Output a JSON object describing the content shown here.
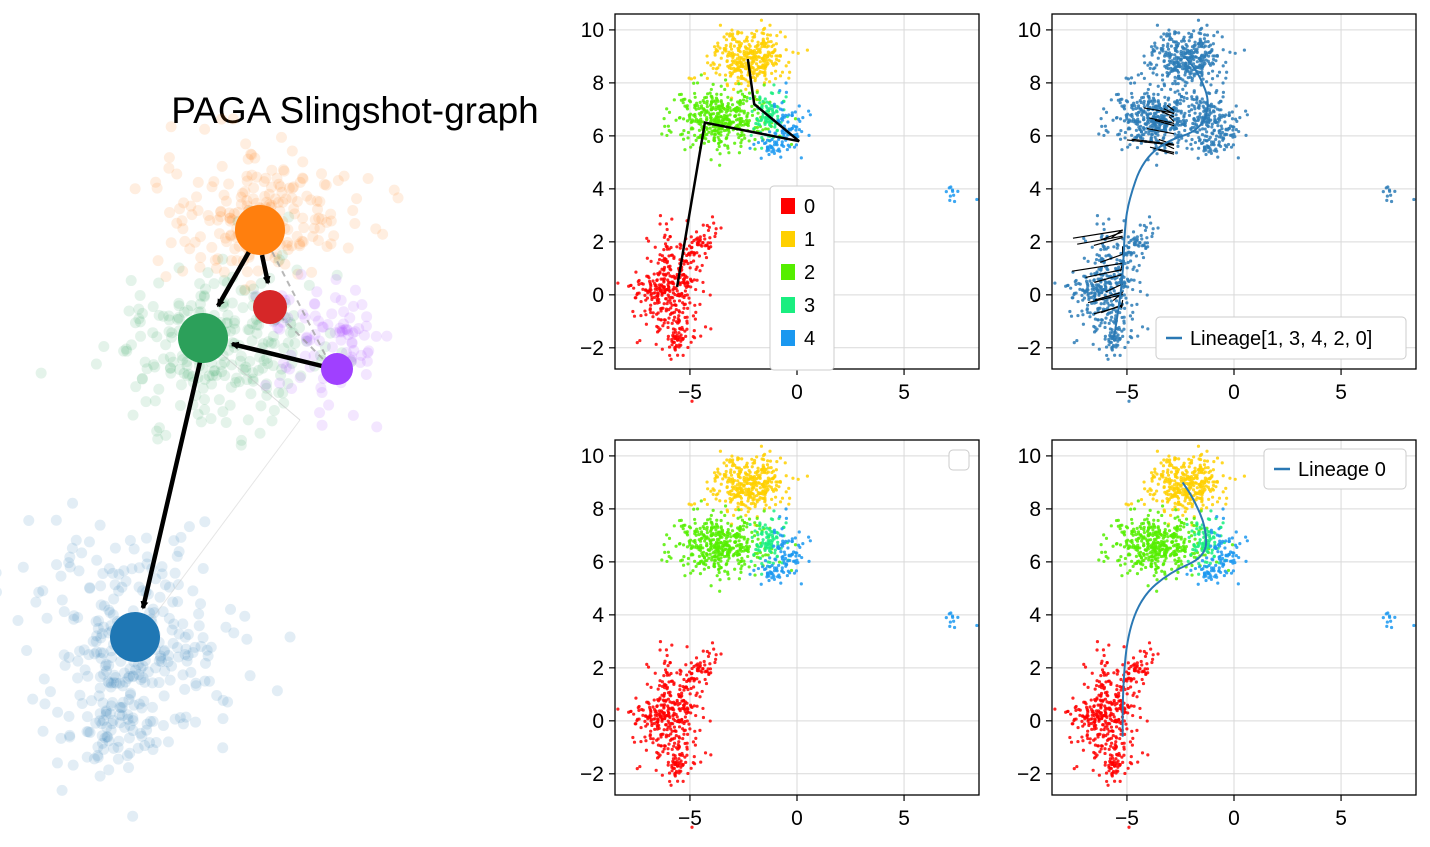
{
  "title": "PAGA Slingshot-graph",
  "colors": {
    "cluster": [
      "#ff0000",
      "#ffd000",
      "#55ee00",
      "#1aee80",
      "#1a98f0"
    ],
    "paga_orange": "#ff7f0e",
    "paga_red": "#d62728",
    "paga_green": "#2ca05a",
    "paga_purple": "#a040ff",
    "paga_blue": "#1f77b4",
    "curve": "#2a78b4",
    "point_blue": "#2c7bb6"
  },
  "chart_data": [
    {
      "type": "scatter",
      "xlim": [
        -8.5,
        8.5
      ],
      "ylim": [
        -2.8,
        10.6
      ],
      "xticks": [
        -5,
        0,
        5
      ],
      "yticks": [
        -2,
        0,
        2,
        4,
        6,
        8,
        10
      ],
      "grid": true,
      "color_mode": "cluster",
      "legend": {
        "placement": "center-right",
        "entries": [
          "0",
          "1",
          "2",
          "3",
          "4"
        ]
      },
      "mst_path": [
        [
          -5.6,
          0.3
        ],
        [
          -4.3,
          6.5
        ],
        [
          0.1,
          5.8
        ],
        [
          -2.0,
          7.2
        ],
        [
          -2.3,
          8.9
        ]
      ]
    },
    {
      "type": "scatter",
      "xlim": [
        -8.5,
        8.5
      ],
      "ylim": [
        -2.8,
        10.6
      ],
      "xticks": [
        -5,
        0,
        5
      ],
      "yticks": [
        -2,
        0,
        2,
        4,
        6,
        8,
        10
      ],
      "grid": true,
      "color_mode": "single",
      "legend": {
        "placement": "lower-right",
        "entries": [
          "Lineage[1, 3, 4, 2, 0]"
        ]
      },
      "curve": [
        [
          -5.6,
          -1.6
        ],
        [
          -5.2,
          0.5
        ],
        [
          -5.1,
          2.6
        ],
        [
          -4.9,
          3.6
        ],
        [
          -4.3,
          5.0
        ],
        [
          -3.2,
          5.8
        ],
        [
          -1.6,
          6.2
        ],
        [
          -1.1,
          7.2
        ],
        [
          -1.6,
          8.3
        ],
        [
          -2.3,
          9.0
        ]
      ]
    },
    {
      "type": "scatter",
      "xlim": [
        -8.5,
        8.5
      ],
      "ylim": [
        -2.8,
        10.6
      ],
      "xticks": [
        -5,
        0,
        5
      ],
      "yticks": [
        -2,
        0,
        2,
        4,
        6,
        8,
        10
      ],
      "grid": true,
      "color_mode": "cluster",
      "legend": {
        "placement": "upper-right",
        "entries": []
      }
    },
    {
      "type": "scatter",
      "xlim": [
        -8.5,
        8.5
      ],
      "ylim": [
        -2.8,
        10.6
      ],
      "xticks": [
        -5,
        0,
        5
      ],
      "yticks": [
        -2,
        0,
        2,
        4,
        6,
        8,
        10
      ],
      "grid": true,
      "color_mode": "cluster",
      "legend": {
        "placement": "upper-right",
        "entries": [
          "Lineage 0"
        ]
      },
      "curve": [
        [
          -5.2,
          -0.6
        ],
        [
          -5.2,
          1.0
        ],
        [
          -5.0,
          3.2
        ],
        [
          -4.3,
          4.7
        ],
        [
          -3.0,
          5.6
        ],
        [
          -1.3,
          6.2
        ],
        [
          -1.3,
          7.3
        ],
        [
          -1.9,
          8.4
        ],
        [
          -2.4,
          9.0
        ]
      ]
    }
  ]
}
